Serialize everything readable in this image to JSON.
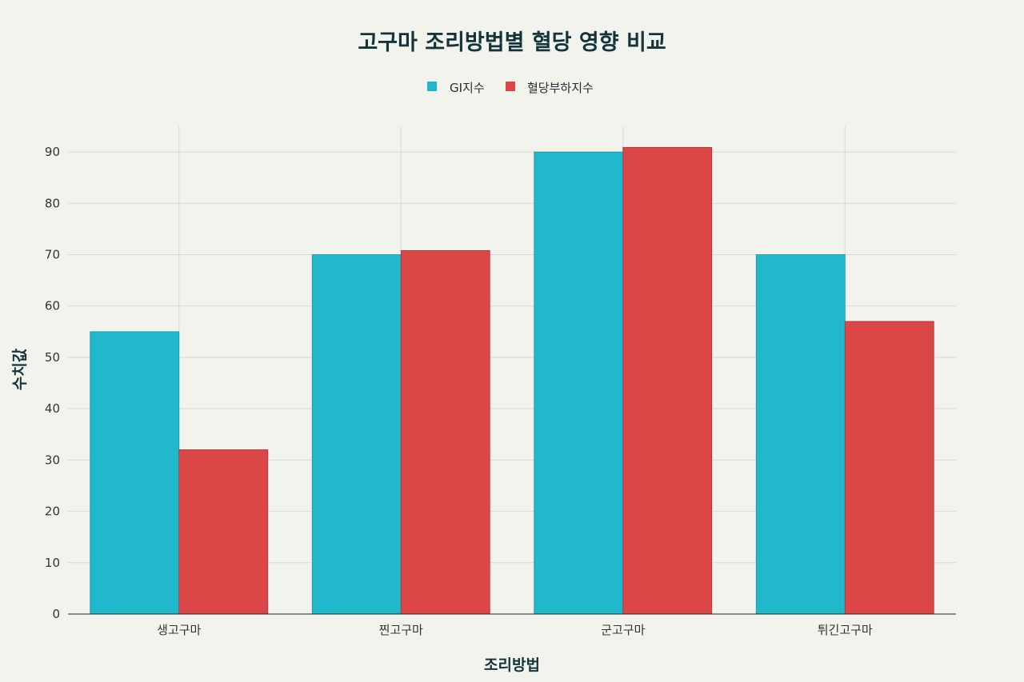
{
  "chart_data": {
    "type": "bar",
    "title": "고구마 조리방법별 혈당 영향 비교",
    "xlabel": "조리방법",
    "ylabel": "수치값",
    "categories": [
      "생고구마",
      "찐고구마",
      "군고구마",
      "튀긴고구마"
    ],
    "series": [
      {
        "name": "GI지수",
        "values": [
          55,
          70,
          90,
          70
        ],
        "color": "#21b8cc"
      },
      {
        "name": "혈당부하지수",
        "values": [
          32,
          70.8,
          90.9,
          57
        ],
        "color": "#db4646"
      }
    ],
    "ylim": [
      0,
      95
    ],
    "yticks": [
      0,
      10,
      20,
      30,
      40,
      50,
      60,
      70,
      80,
      90
    ],
    "grid": true,
    "legend_position": "top-center"
  }
}
